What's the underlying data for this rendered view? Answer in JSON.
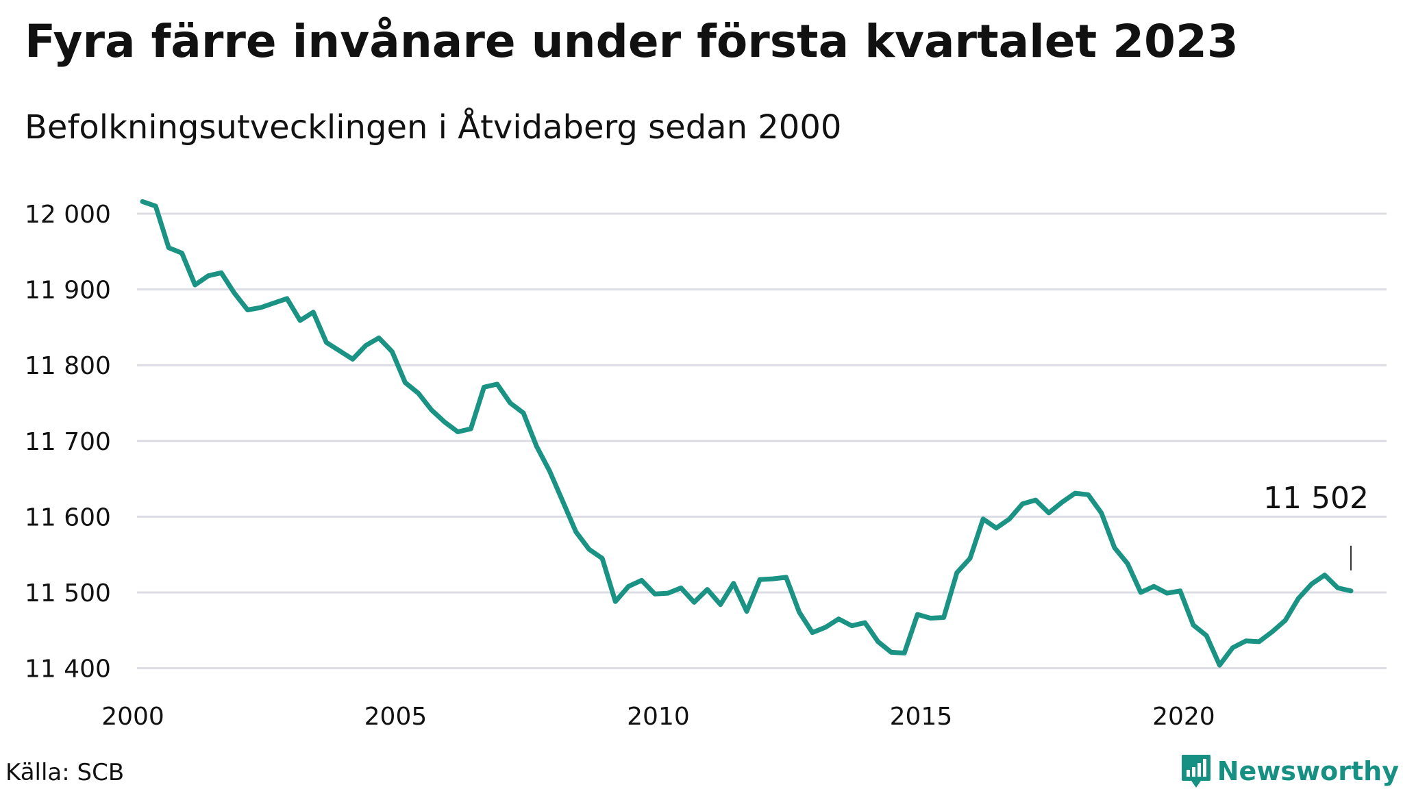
{
  "header": {
    "title": "Fyra färre invånare under första kvartalet 2023",
    "subtitle": "Befolkningsutvecklingen i Åtvidaberg sedan 2000"
  },
  "footer": {
    "source": "Källa: SCB",
    "brand": "Newsworthy"
  },
  "colors": {
    "line": "#1a9384",
    "grid": "#dcdce4",
    "brand": "#159083"
  },
  "icons": {
    "brand_logo": "newsworthy-bar-chart-logo-icon"
  },
  "chart_data": {
    "type": "line",
    "title": "Fyra färre invånare under första kvartalet 2023",
    "subtitle": "Befolkningsutvecklingen i Åtvidaberg sedan 2000",
    "xlabel": "",
    "ylabel": "",
    "xlim": [
      2000,
      2024.2
    ],
    "ylim": [
      11390,
      12030
    ],
    "grid": true,
    "legend": "none",
    "x_ticks": [
      {
        "value": 2000,
        "label": "2000"
      },
      {
        "value": 2005,
        "label": "2005"
      },
      {
        "value": 2010,
        "label": "2010"
      },
      {
        "value": 2015,
        "label": "2015"
      },
      {
        "value": 2020,
        "label": "2020"
      }
    ],
    "y_ticks": [
      {
        "value": 12000,
        "label": "12 000"
      },
      {
        "value": 11900,
        "label": "11 900"
      },
      {
        "value": 11800,
        "label": "11 800"
      },
      {
        "value": 11700,
        "label": "11 700"
      },
      {
        "value": 11600,
        "label": "11 600"
      },
      {
        "value": 11500,
        "label": "11 500"
      },
      {
        "value": 11400,
        "label": "11 400"
      }
    ],
    "annotation": {
      "label": "11 502",
      "x": 2023.0,
      "y": 11502
    },
    "series": [
      {
        "x": [
          2000.0,
          2000.25,
          2000.5,
          2000.75,
          2001.0,
          2001.25,
          2001.5,
          2001.75,
          2002.0,
          2002.25,
          2002.5,
          2002.75,
          2003.0,
          2003.25,
          2003.5,
          2003.75,
          2004.0,
          2004.25,
          2004.5,
          2004.75,
          2005.0,
          2005.25,
          2005.5,
          2005.75,
          2006.0,
          2006.25,
          2006.5,
          2006.75,
          2007.0,
          2007.25,
          2007.5,
          2007.75,
          2008.0,
          2008.25,
          2008.5,
          2008.75,
          2009.0,
          2009.25,
          2009.5,
          2009.75,
          2010.0,
          2010.25,
          2010.5,
          2010.75,
          2011.0,
          2011.25,
          2011.5,
          2011.75,
          2012.0,
          2012.25,
          2012.5,
          2012.75,
          2013.0,
          2013.25,
          2013.5,
          2013.75,
          2014.0,
          2014.25,
          2014.5,
          2014.75,
          2015.0,
          2015.25,
          2015.5,
          2015.75,
          2016.0,
          2016.25,
          2016.5,
          2016.75,
          2017.0,
          2017.25,
          2017.5,
          2017.75,
          2018.0,
          2018.25,
          2018.5,
          2018.75,
          2019.0,
          2019.25,
          2019.5,
          2019.75,
          2020.0,
          2020.25,
          2020.5,
          2020.75,
          2021.0,
          2021.25,
          2021.5,
          2021.75,
          2022.0,
          2022.25,
          2022.5,
          2022.75,
          2023.0
        ],
        "values": [
          12016,
          12010,
          11955,
          11948,
          11906,
          11918,
          11922,
          11895,
          11873,
          11876,
          11882,
          11888,
          11859,
          11870,
          11830,
          11819,
          11808,
          11826,
          11836,
          11818,
          11777,
          11763,
          11741,
          11725,
          11712,
          11716,
          11771,
          11775,
          11750,
          11737,
          11693,
          11660,
          11620,
          11580,
          11557,
          11545,
          11488,
          11508,
          11516,
          11498,
          11499,
          11506,
          11487,
          11504,
          11484,
          11512,
          11475,
          11517,
          11518,
          11520,
          11474,
          11447,
          11454,
          11465,
          11456,
          11460,
          11435,
          11421,
          11420,
          11471,
          11466,
          11467,
          11526,
          11545,
          11597,
          11585,
          11597,
          11617,
          11622,
          11605,
          11619,
          11631,
          11629,
          11605,
          11559,
          11538,
          11500,
          11508,
          11499,
          11502,
          11457,
          11443,
          11404,
          11427,
          11436,
          11435,
          11448,
          11463,
          11492,
          11511,
          11523,
          11506,
          11502
        ]
      }
    ]
  }
}
